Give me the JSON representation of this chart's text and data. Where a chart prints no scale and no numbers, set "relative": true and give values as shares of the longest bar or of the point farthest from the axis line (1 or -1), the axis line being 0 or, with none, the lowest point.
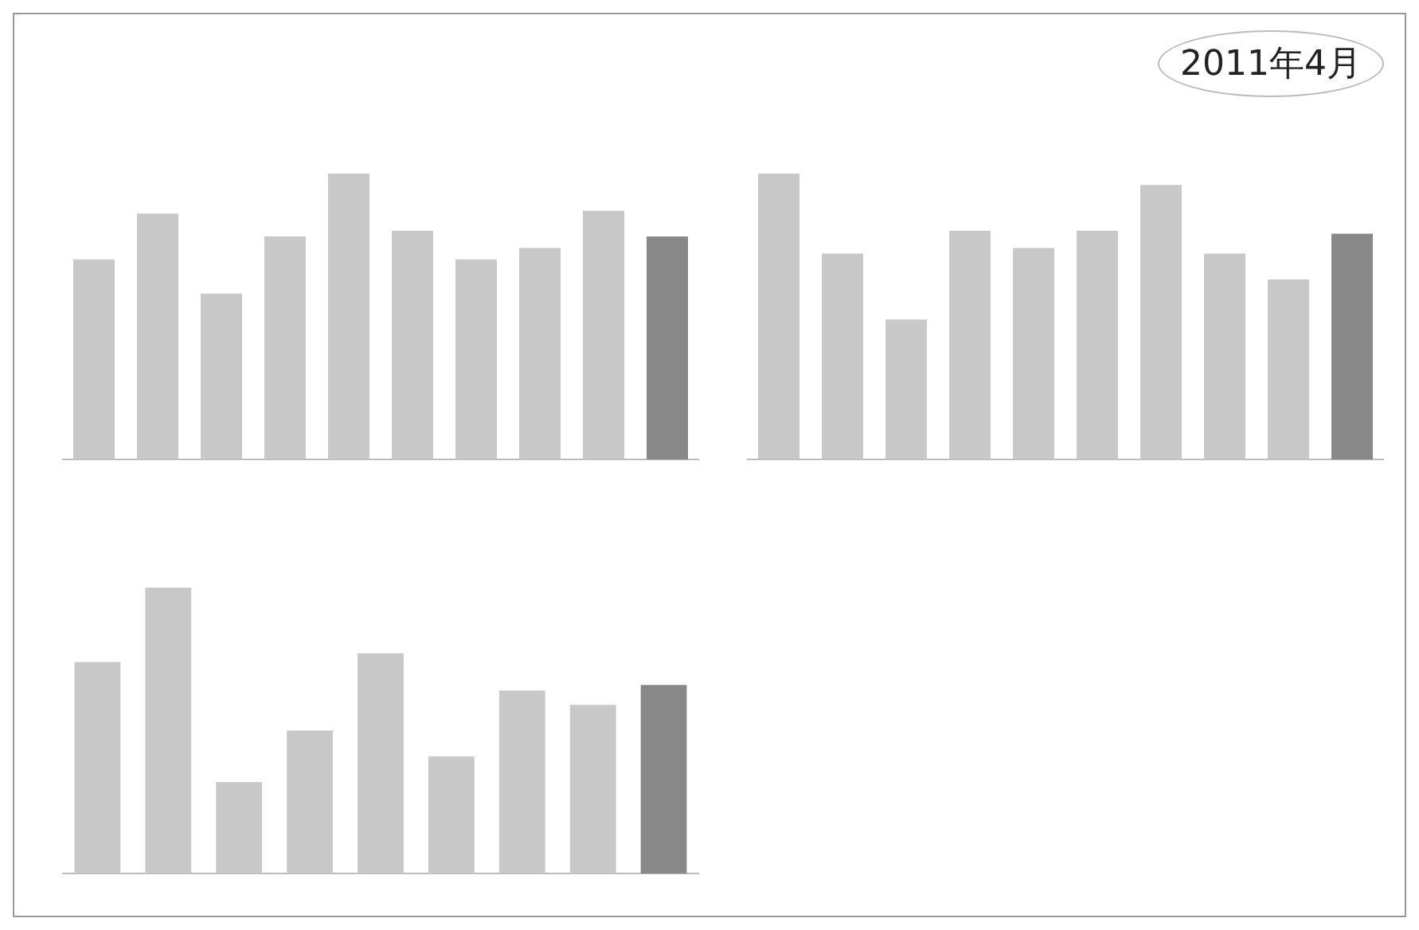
{
  "chart_data": [
    {
      "type": "bar",
      "relative": true,
      "categories": [
        null,
        null,
        null,
        null,
        null,
        null,
        null,
        null,
        null,
        null
      ],
      "values": [
        0.7,
        0.86,
        0.58,
        0.78,
        1,
        0.8,
        0.7,
        0.74,
        0.87,
        0.78
      ],
      "colors": [
        "#c8c8c8",
        "#c8c8c8",
        "#c8c8c8",
        "#c8c8c8",
        "#c8c8c8",
        "#c8c8c8",
        "#c8c8c8",
        "#c8c8c8",
        "#c8c8c8",
        "#888888"
      ],
      "grid": false,
      "legend": false
    },
    {
      "type": "bar",
      "relative": true,
      "categories": [
        null,
        null,
        null,
        null,
        null,
        null,
        null,
        null,
        null,
        null
      ],
      "values": [
        1,
        0.72,
        0.49,
        0.8,
        0.74,
        0.8,
        0.96,
        0.72,
        0.63,
        0.79
      ],
      "colors": [
        "#c8c8c8",
        "#c8c8c8",
        "#c8c8c8",
        "#c8c8c8",
        "#c8c8c8",
        "#c8c8c8",
        "#c8c8c8",
        "#c8c8c8",
        "#c8c8c8",
        "#888888"
      ],
      "grid": false,
      "legend": false,
      "annotations": [
        "2011年4月"
      ]
    },
    {
      "type": "bar",
      "relative": true,
      "categories": [
        null,
        null,
        null,
        null,
        null,
        null,
        null,
        null,
        null
      ],
      "values": [
        0.74,
        1,
        0.32,
        0.5,
        0.77,
        0.41,
        0.64,
        0.59,
        0.66
      ],
      "colors": [
        "#c8c8c8",
        "#c8c8c8",
        "#c8c8c8",
        "#c8c8c8",
        "#c8c8c8",
        "#c8c8c8",
        "#c8c8c8",
        "#c8c8c8",
        "#888888"
      ],
      "grid": false,
      "legend": false
    }
  ]
}
